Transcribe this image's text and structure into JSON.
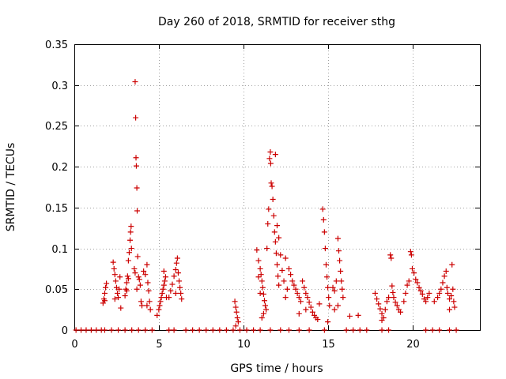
{
  "chart_data": {
    "type": "scatter",
    "title": "Day 260 of 2018, SRMTID for receiver sthg",
    "xlabel": "GPS time / hours",
    "ylabel": "SRMTID / TECUs",
    "xlim": [
      0,
      24
    ],
    "ylim": [
      0,
      0.35
    ],
    "xticks": [
      0,
      5,
      10,
      15,
      20
    ],
    "xtick_labels": [
      "0",
      "5",
      "10",
      "15",
      "20"
    ],
    "yticks": [
      0,
      0.05,
      0.1,
      0.15,
      0.2,
      0.25,
      0.3,
      0.35
    ],
    "ytick_labels": [
      "0",
      "0.05",
      "0.1",
      "0.15",
      "0.2",
      "0.25",
      "0.3",
      "0.35"
    ],
    "grid": true,
    "marker": "+",
    "series_color": "#cc0000",
    "series": [
      {
        "name": "SRMTID",
        "points": [
          [
            0.1,
            0
          ],
          [
            0.4,
            0
          ],
          [
            0.7,
            0
          ],
          [
            1.0,
            0
          ],
          [
            1.3,
            0
          ],
          [
            1.6,
            0
          ],
          [
            1.8,
            0
          ],
          [
            2.2,
            0
          ],
          [
            2.6,
            0
          ],
          [
            3.0,
            0
          ],
          [
            3.4,
            0
          ],
          [
            3.8,
            0
          ],
          [
            4.2,
            0
          ],
          [
            4.6,
            0
          ],
          [
            5.6,
            0
          ],
          [
            5.9,
            0
          ],
          [
            6.6,
            0
          ],
          [
            7.0,
            0
          ],
          [
            7.4,
            0
          ],
          [
            7.8,
            0
          ],
          [
            8.2,
            0
          ],
          [
            8.6,
            0
          ],
          [
            9.0,
            0
          ],
          [
            9.4,
            0
          ],
          [
            9.8,
            0
          ],
          [
            10.2,
            0
          ],
          [
            10.6,
            0
          ],
          [
            11.0,
            0
          ],
          [
            11.6,
            0
          ],
          [
            12.2,
            0
          ],
          [
            12.7,
            0
          ],
          [
            13.3,
            0
          ],
          [
            13.9,
            0
          ],
          [
            14.8,
            0
          ],
          [
            16.1,
            0
          ],
          [
            16.5,
            0
          ],
          [
            16.9,
            0
          ],
          [
            17.3,
            0
          ],
          [
            18.2,
            0
          ],
          [
            18.6,
            0
          ],
          [
            20.8,
            0
          ],
          [
            21.2,
            0
          ],
          [
            21.6,
            0
          ],
          [
            22.2,
            0
          ],
          [
            22.6,
            0
          ],
          [
            1.7,
            0.033
          ],
          [
            1.75,
            0.038
          ],
          [
            1.8,
            0.045
          ],
          [
            1.85,
            0.052
          ],
          [
            1.9,
            0.057
          ],
          [
            1.8,
            0.036
          ],
          [
            2.3,
            0.083
          ],
          [
            2.35,
            0.075
          ],
          [
            2.4,
            0.068
          ],
          [
            2.45,
            0.06
          ],
          [
            2.5,
            0.052
          ],
          [
            2.55,
            0.045
          ],
          [
            2.6,
            0.04
          ],
          [
            2.65,
            0.05
          ],
          [
            2.7,
            0.065
          ],
          [
            2.4,
            0.038
          ],
          [
            2.75,
            0.027
          ],
          [
            3.0,
            0.042
          ],
          [
            3.05,
            0.05
          ],
          [
            3.1,
            0.058
          ],
          [
            3.15,
            0.066
          ],
          [
            3.2,
            0.085
          ],
          [
            3.25,
            0.095
          ],
          [
            3.3,
            0.11
          ],
          [
            3.33,
            0.12
          ],
          [
            3.36,
            0.127
          ],
          [
            3.38,
            0.1
          ],
          [
            3.2,
            0.063
          ],
          [
            3.1,
            0.048
          ],
          [
            3.55,
            0.075
          ],
          [
            3.6,
            0.304
          ],
          [
            3.63,
            0.26
          ],
          [
            3.65,
            0.211
          ],
          [
            3.67,
            0.201
          ],
          [
            3.7,
            0.174
          ],
          [
            3.72,
            0.146
          ],
          [
            3.75,
            0.09
          ],
          [
            3.6,
            0.07
          ],
          [
            3.8,
            0.065
          ],
          [
            3.9,
            0.055
          ],
          [
            3.95,
            0.035
          ],
          [
            4.0,
            0.03
          ],
          [
            3.7,
            0.05
          ],
          [
            3.85,
            0.062
          ],
          [
            4.1,
            0.072
          ],
          [
            4.2,
            0.068
          ],
          [
            4.3,
            0.08
          ],
          [
            4.35,
            0.058
          ],
          [
            4.4,
            0.048
          ],
          [
            4.45,
            0.035
          ],
          [
            4.5,
            0.025
          ],
          [
            4.3,
            0.03
          ],
          [
            4.9,
            0.018
          ],
          [
            5.0,
            0.025
          ],
          [
            5.05,
            0.03
          ],
          [
            5.1,
            0.035
          ],
          [
            5.15,
            0.04
          ],
          [
            5.2,
            0.045
          ],
          [
            5.25,
            0.05
          ],
          [
            5.3,
            0.055
          ],
          [
            5.35,
            0.06
          ],
          [
            5.4,
            0.065
          ],
          [
            5.3,
            0.072
          ],
          [
            5.45,
            0.04
          ],
          [
            5.6,
            0.04
          ],
          [
            5.7,
            0.048
          ],
          [
            5.8,
            0.056
          ],
          [
            5.9,
            0.066
          ],
          [
            6.0,
            0.074
          ],
          [
            6.05,
            0.082
          ],
          [
            6.1,
            0.088
          ],
          [
            6.15,
            0.07
          ],
          [
            6.2,
            0.06
          ],
          [
            6.25,
            0.052
          ],
          [
            6.3,
            0.045
          ],
          [
            6.35,
            0.038
          ],
          [
            6.0,
            0.045
          ],
          [
            9.5,
            0.035
          ],
          [
            9.55,
            0.028
          ],
          [
            9.6,
            0.022
          ],
          [
            9.65,
            0.015
          ],
          [
            9.7,
            0.01
          ],
          [
            9.55,
            0.005
          ],
          [
            10.8,
            0.098
          ],
          [
            10.9,
            0.085
          ],
          [
            11.0,
            0.075
          ],
          [
            11.05,
            0.068
          ],
          [
            11.1,
            0.06
          ],
          [
            11.15,
            0.052
          ],
          [
            11.2,
            0.044
          ],
          [
            11.25,
            0.036
          ],
          [
            11.3,
            0.03
          ],
          [
            11.35,
            0.025
          ],
          [
            11.2,
            0.02
          ],
          [
            11.1,
            0.015
          ],
          [
            11.0,
            0.045
          ],
          [
            10.9,
            0.065
          ],
          [
            11.4,
            0.1
          ],
          [
            11.45,
            0.13
          ],
          [
            11.5,
            0.148
          ],
          [
            11.55,
            0.21
          ],
          [
            11.6,
            0.218
          ],
          [
            11.62,
            0.204
          ],
          [
            11.65,
            0.18
          ],
          [
            11.7,
            0.176
          ],
          [
            11.75,
            0.16
          ],
          [
            11.8,
            0.14
          ],
          [
            11.85,
            0.12
          ],
          [
            11.9,
            0.108
          ],
          [
            11.95,
            0.094
          ],
          [
            12.0,
            0.08
          ],
          [
            12.05,
            0.066
          ],
          [
            12.1,
            0.055
          ],
          [
            11.9,
            0.215
          ],
          [
            12.0,
            0.128
          ],
          [
            12.1,
            0.113
          ],
          [
            12.2,
            0.092
          ],
          [
            12.3,
            0.073
          ],
          [
            12.4,
            0.06
          ],
          [
            12.5,
            0.088
          ],
          [
            12.6,
            0.05
          ],
          [
            12.5,
            0.04
          ],
          [
            12.7,
            0.075
          ],
          [
            12.8,
            0.068
          ],
          [
            12.9,
            0.06
          ],
          [
            13.0,
            0.055
          ],
          [
            13.1,
            0.05
          ],
          [
            13.2,
            0.045
          ],
          [
            13.3,
            0.04
          ],
          [
            13.4,
            0.035
          ],
          [
            13.5,
            0.06
          ],
          [
            13.6,
            0.052
          ],
          [
            13.7,
            0.045
          ],
          [
            13.8,
            0.04
          ],
          [
            13.9,
            0.034
          ],
          [
            14.0,
            0.028
          ],
          [
            14.1,
            0.022
          ],
          [
            14.2,
            0.018
          ],
          [
            14.3,
            0.015
          ],
          [
            14.4,
            0.013
          ],
          [
            14.5,
            0.032
          ],
          [
            13.3,
            0.02
          ],
          [
            13.7,
            0.025
          ],
          [
            14.7,
            0.148
          ],
          [
            14.75,
            0.135
          ],
          [
            14.8,
            0.12
          ],
          [
            14.85,
            0.1
          ],
          [
            14.9,
            0.08
          ],
          [
            14.95,
            0.065
          ],
          [
            15.0,
            0.052
          ],
          [
            15.05,
            0.04
          ],
          [
            15.1,
            0.03
          ],
          [
            15.0,
            0.01
          ],
          [
            15.3,
            0.052
          ],
          [
            15.4,
            0.048
          ],
          [
            15.5,
            0.06
          ],
          [
            15.6,
            0.112
          ],
          [
            15.65,
            0.097
          ],
          [
            15.7,
            0.085
          ],
          [
            15.75,
            0.072
          ],
          [
            15.8,
            0.06
          ],
          [
            15.85,
            0.05
          ],
          [
            15.9,
            0.04
          ],
          [
            15.6,
            0.03
          ],
          [
            15.4,
            0.025
          ],
          [
            16.3,
            0.017
          ],
          [
            16.8,
            0.018
          ],
          [
            17.8,
            0.045
          ],
          [
            17.9,
            0.038
          ],
          [
            18.0,
            0.032
          ],
          [
            18.1,
            0.026
          ],
          [
            18.2,
            0.02
          ],
          [
            18.3,
            0.015
          ],
          [
            18.4,
            0.025
          ],
          [
            18.5,
            0.035
          ],
          [
            18.6,
            0.04
          ],
          [
            18.2,
            0.012
          ],
          [
            18.7,
            0.092
          ],
          [
            18.75,
            0.088
          ],
          [
            18.8,
            0.054
          ],
          [
            18.85,
            0.046
          ],
          [
            18.9,
            0.04
          ],
          [
            19.0,
            0.034
          ],
          [
            19.1,
            0.03
          ],
          [
            19.2,
            0.025
          ],
          [
            19.3,
            0.022
          ],
          [
            19.5,
            0.035
          ],
          [
            19.6,
            0.045
          ],
          [
            19.7,
            0.055
          ],
          [
            19.8,
            0.06
          ],
          [
            19.9,
            0.096
          ],
          [
            19.95,
            0.092
          ],
          [
            20.0,
            0.075
          ],
          [
            20.1,
            0.07
          ],
          [
            20.2,
            0.062
          ],
          [
            20.3,
            0.058
          ],
          [
            20.4,
            0.052
          ],
          [
            20.5,
            0.048
          ],
          [
            20.6,
            0.044
          ],
          [
            20.7,
            0.038
          ],
          [
            20.8,
            0.035
          ],
          [
            20.9,
            0.04
          ],
          [
            21.0,
            0.045
          ],
          [
            21.3,
            0.035
          ],
          [
            21.5,
            0.04
          ],
          [
            21.6,
            0.045
          ],
          [
            21.7,
            0.05
          ],
          [
            21.8,
            0.058
          ],
          [
            21.9,
            0.066
          ],
          [
            22.0,
            0.072
          ],
          [
            22.05,
            0.052
          ],
          [
            22.1,
            0.045
          ],
          [
            22.2,
            0.038
          ],
          [
            22.3,
            0.042
          ],
          [
            22.35,
            0.08
          ],
          [
            22.4,
            0.05
          ],
          [
            22.45,
            0.035
          ],
          [
            22.5,
            0.028
          ],
          [
            22.2,
            0.025
          ]
        ]
      }
    ]
  }
}
